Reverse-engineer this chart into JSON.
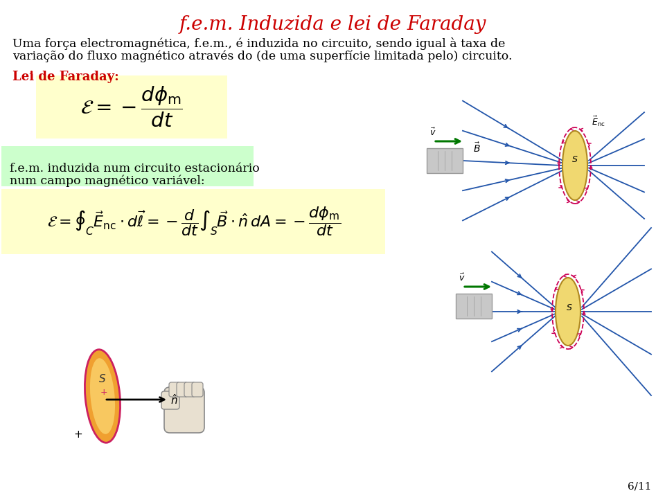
{
  "title": "f.e.m. Induzida e lei de Faraday",
  "title_color": "#cc0000",
  "title_fontsize": 20,
  "body_text1": "Uma força electromagnética, f.e.m., é induzida no circuito, sendo igual à taxa de",
  "body_text2": "variação do fluxo magnético através do (de uma superfície limitada pelo) circuito.",
  "body_fontsize": 12.5,
  "label_faraday": "Lei de Faraday:",
  "label_faraday_color": "#cc0000",
  "label_faraday_fontsize": 13,
  "formula1_box_color": "#ffffcc",
  "label_fem": "f.e.m. induzida num circuito estacionário\nnum campo magnético variável:",
  "label_fem_box_color": "#ccffcc",
  "bg_color": "#ffffff",
  "blue_color": "#2255aa",
  "green_color": "#007700",
  "magenta_color": "#cc0055",
  "gold_color": "#f0d080",
  "gray_color": "#aaaaaa",
  "page_num": "6/11"
}
